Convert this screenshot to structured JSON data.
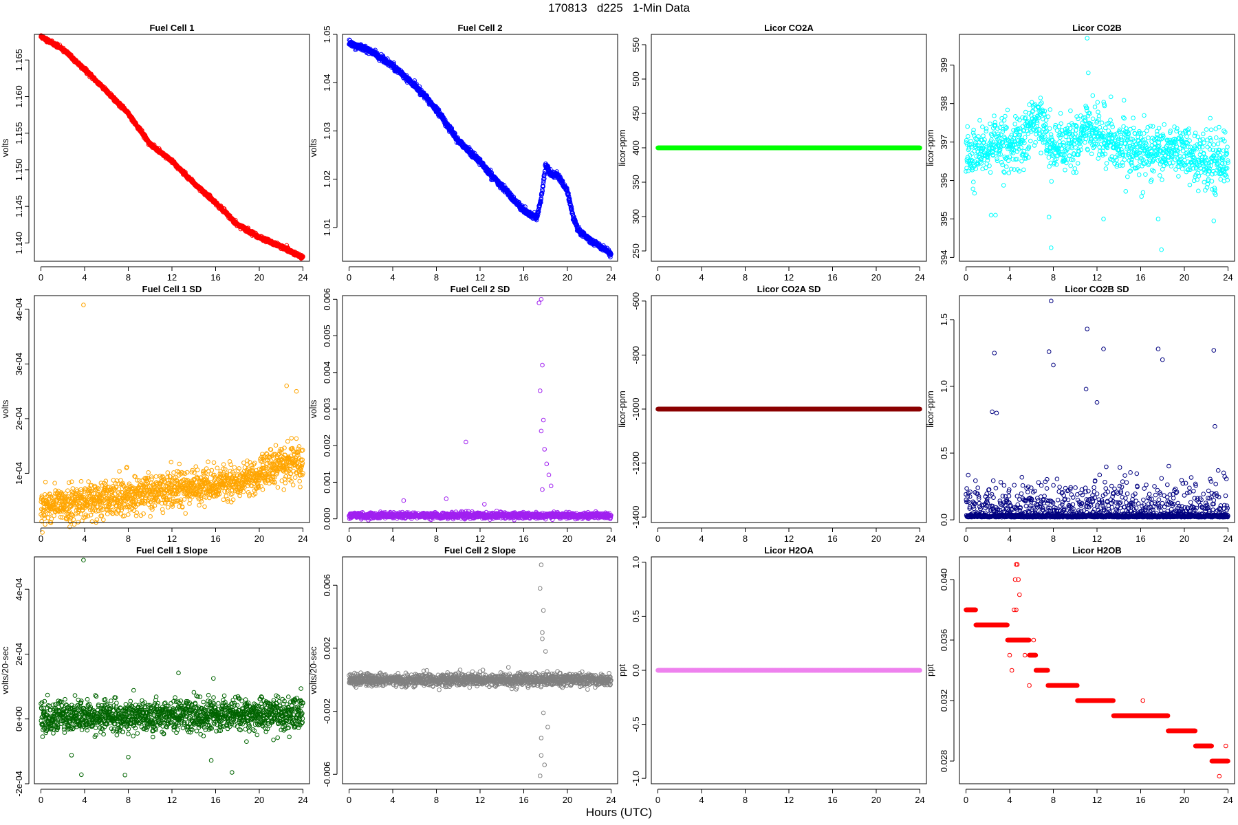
{
  "page": {
    "title": "170813   d225   1-Min Data",
    "xlabel": "Hours (UTC)"
  },
  "chart_data": [
    {
      "type": "scatter",
      "title": "Fuel Cell 1",
      "ylabel": "volts",
      "color": "#ff0000",
      "xlim": [
        0,
        24
      ],
      "ylim": [
        1.1375,
        1.1685
      ],
      "xticks": [
        0,
        4,
        8,
        12,
        16,
        20,
        24
      ],
      "yticks": [
        1.14,
        1.145,
        1.15,
        1.155,
        1.16,
        1.165
      ],
      "ytick_labels": [
        "1.140",
        "1.145",
        "1.150",
        "1.155",
        "1.160",
        "1.165"
      ],
      "trend": {
        "x": [
          0,
          2,
          4,
          6,
          8,
          10,
          12,
          14,
          16,
          18,
          20,
          22,
          24
        ],
        "y": [
          1.1682,
          1.1665,
          1.1637,
          1.1608,
          1.1577,
          1.1535,
          1.1512,
          1.1482,
          1.1455,
          1.1425,
          1.1408,
          1.1395,
          1.138
        ]
      },
      "noise": 0.00012,
      "n_points": 1440,
      "seed": 11
    },
    {
      "type": "scatter",
      "title": "Fuel Cell 2",
      "ylabel": "volts",
      "color": "#0000ff",
      "xlim": [
        0,
        24
      ],
      "ylim": [
        1.003,
        1.05
      ],
      "xticks": [
        0,
        4,
        8,
        12,
        16,
        20,
        24
      ],
      "yticks": [
        1.01,
        1.02,
        1.03,
        1.04,
        1.05
      ],
      "ytick_labels": [
        "1.01",
        "1.02",
        "1.03",
        "1.04",
        "1.05"
      ],
      "trend": {
        "x": [
          0,
          2,
          4,
          6,
          8,
          10,
          12,
          14,
          16,
          17.2,
          17.6,
          18,
          18.5,
          19,
          19.5,
          20,
          20.5,
          21,
          22,
          23,
          24
        ],
        "y": [
          1.0483,
          1.0465,
          1.0435,
          1.0395,
          1.0345,
          1.028,
          1.0235,
          1.0185,
          1.0135,
          1.012,
          1.016,
          1.023,
          1.021,
          1.021,
          1.0195,
          1.0175,
          1.0125,
          1.0095,
          1.0075,
          1.006,
          1.0045
        ]
      },
      "noise": 0.0003,
      "n_points": 1440,
      "seed": 12
    },
    {
      "type": "scatter",
      "title": "Licor CO2A",
      "ylabel": "licor-ppm",
      "color": "#00ff00",
      "xlim": [
        0,
        24
      ],
      "ylim": [
        235,
        565
      ],
      "xticks": [
        0,
        4,
        8,
        12,
        16,
        20,
        24
      ],
      "yticks": [
        250,
        300,
        350,
        400,
        450,
        500,
        550
      ],
      "ytick_labels": [
        "250",
        "300",
        "350",
        "400",
        "450",
        "500",
        "550"
      ],
      "trend": {
        "x": [
          0,
          24
        ],
        "y": [
          400,
          400
        ]
      },
      "noise": 0,
      "n_points": 1440,
      "seed": 13
    },
    {
      "type": "scatter",
      "title": "Licor CO2B",
      "ylabel": "licor-ppm",
      "color": "#00ffff",
      "xlim": [
        0,
        24
      ],
      "ylim": [
        393.9,
        399.8
      ],
      "xticks": [
        0,
        4,
        8,
        12,
        16,
        20,
        24
      ],
      "yticks": [
        394,
        395,
        396,
        397,
        398,
        399
      ],
      "ytick_labels": [
        "394",
        "395",
        "396",
        "397",
        "398",
        "399"
      ],
      "trend": {
        "x": [
          0,
          2,
          2.5,
          4,
          5,
          6,
          7,
          7.5,
          8,
          10,
          11,
          12,
          14,
          16,
          18,
          20,
          22,
          24
        ],
        "y": [
          396.8,
          396.8,
          397.0,
          396.9,
          397.0,
          397.5,
          397.6,
          396.9,
          396.9,
          397.0,
          397.5,
          397.2,
          396.9,
          396.8,
          396.8,
          396.7,
          396.5,
          396.5
        ]
      },
      "noise": 0.35,
      "n_points": 1200,
      "seed": 14,
      "extra_points": {
        "x": [
          2.3,
          2.7,
          7.6,
          7.8,
          12.6,
          17.6,
          17.9,
          22.7,
          11.1,
          11.2
        ],
        "y": [
          395.1,
          395.1,
          395.05,
          394.25,
          395.0,
          395.0,
          394.2,
          394.95,
          399.7,
          398.8
        ]
      }
    },
    {
      "type": "scatter",
      "title": "Fuel Cell 1 SD",
      "ylabel": "volts",
      "color": "#ffa500",
      "xlim": [
        0,
        24
      ],
      "ylim": [
        1e-05,
        0.000425
      ],
      "xticks": [
        0,
        4,
        8,
        12,
        16,
        20,
        24
      ],
      "yticks": [
        0.0001,
        0.0002,
        0.0003,
        0.0004
      ],
      "ytick_labels": [
        "1e-04",
        "2e-04",
        "3e-04",
        "4e-04"
      ],
      "trend": {
        "x": [
          0,
          4,
          8,
          12,
          16,
          20,
          22,
          24
        ],
        "y": [
          4.2e-05,
          5e-05,
          5.8e-05,
          7e-05,
          7.8e-05,
          9.5e-05,
          0.00012,
          0.00012
        ]
      },
      "noise": 1.6e-05,
      "n_points": 1440,
      "seed": 15,
      "extra_points": {
        "x": [
          3.9,
          22.5,
          23.4
        ],
        "y": [
          0.000408,
          0.00026,
          0.00025
        ]
      }
    },
    {
      "type": "scatter",
      "title": "Fuel Cell 2 SD",
      "ylabel": "volts",
      "color": "#a020f0",
      "xlim": [
        0,
        24
      ],
      "ylim": [
        -0.0001,
        0.0061
      ],
      "xticks": [
        0,
        4,
        8,
        12,
        16,
        20,
        24
      ],
      "yticks": [
        0,
        0.001,
        0.002,
        0.003,
        0.004,
        0.005,
        0.006
      ],
      "ytick_labels": [
        "0.000",
        "0.001",
        "0.002",
        "0.003",
        "0.004",
        "0.005",
        "0.006"
      ],
      "trend": {
        "x": [
          0,
          24
        ],
        "y": [
          9e-05,
          9e-05
        ]
      },
      "noise": 4e-05,
      "n_points": 1440,
      "seed": 16,
      "extra_points": {
        "x": [
          10.7,
          17.4,
          17.6,
          17.7,
          17.5,
          17.8,
          17.6,
          17.9,
          18.1,
          18.3,
          17.7,
          18.5,
          8.9,
          5.0,
          12.4
        ],
        "y": [
          0.0021,
          0.0059,
          0.006,
          0.0042,
          0.0035,
          0.0027,
          0.0024,
          0.0019,
          0.0015,
          0.0012,
          0.0008,
          0.0009,
          0.00055,
          0.0005,
          0.0004
        ]
      }
    },
    {
      "type": "scatter",
      "title": "Licor CO2A SD",
      "ylabel": "licor-ppm",
      "color": "#8b0000",
      "xlim": [
        0,
        24
      ],
      "ylim": [
        -1420,
        -580
      ],
      "xticks": [
        0,
        4,
        8,
        12,
        16,
        20,
        24
      ],
      "yticks": [
        -1400,
        -1200,
        -1000,
        -800,
        -600
      ],
      "ytick_labels": [
        "-1400",
        "-1200",
        "-1000",
        "-800",
        "-600"
      ],
      "trend": {
        "x": [
          0,
          24
        ],
        "y": [
          -1000,
          -1000
        ]
      },
      "noise": 0,
      "n_points": 1440,
      "seed": 17
    },
    {
      "type": "scatter",
      "title": "Licor CO2B SD",
      "ylabel": "licor-ppm",
      "color": "#000080",
      "xlim": [
        0,
        24
      ],
      "ylim": [
        -0.02,
        1.68
      ],
      "xticks": [
        0,
        4,
        8,
        12,
        16,
        20,
        24
      ],
      "yticks": [
        0,
        0.5,
        1,
        1.5
      ],
      "ytick_labels": [
        "0.0",
        "0.5",
        "1.0",
        "1.5"
      ],
      "trend": {
        "x": [
          0,
          24
        ],
        "y": [
          0.02,
          0.02
        ]
      },
      "noise": 0.12,
      "n_points": 1440,
      "seed": 18,
      "abs_noise": true,
      "extra_points": {
        "x": [
          7.8,
          11.1,
          12.6,
          2.6,
          17.6,
          18.0,
          22.7,
          7.6,
          8.0,
          2.4,
          2.8,
          11.0,
          22.8,
          12.0
        ],
        "y": [
          1.64,
          1.43,
          1.28,
          1.25,
          1.28,
          1.2,
          1.27,
          1.26,
          1.16,
          0.81,
          0.8,
          0.98,
          0.7,
          0.88
        ]
      }
    },
    {
      "type": "scatter",
      "title": "Fuel Cell 1 Slope",
      "ylabel": "volts/20-sec",
      "color": "#006400",
      "xlim": [
        0,
        24
      ],
      "ylim": [
        -0.0002,
        0.0005
      ],
      "xticks": [
        0,
        4,
        8,
        12,
        16,
        20,
        24
      ],
      "yticks": [
        -0.0002,
        0,
        0.0002,
        0.0004
      ],
      "ytick_labels": [
        "-2e-04",
        "0e+00",
        "2e-04",
        "4e-04"
      ],
      "trend": {
        "x": [
          0,
          24
        ],
        "y": [
          5e-06,
          1.5e-05
        ]
      },
      "noise": 2.5e-05,
      "n_points": 1440,
      "seed": 19,
      "extra_points": {
        "x": [
          3.9,
          12.6,
          15.8,
          17.5,
          3.7,
          7.7,
          2.8,
          8.0,
          15.6
        ],
        "y": [
          0.00049,
          0.000142,
          0.000125,
          -0.000165,
          -0.000172,
          -0.000173,
          -0.000112,
          -0.000118,
          -0.000128
        ]
      }
    },
    {
      "type": "scatter",
      "title": "Fuel Cell 2 Slope",
      "ylabel": "volts/20-sec",
      "color": "#808080",
      "xlim": [
        0,
        24
      ],
      "ylim": [
        -0.0066,
        0.0078
      ],
      "xticks": [
        0,
        4,
        8,
        12,
        16,
        20,
        24
      ],
      "yticks": [
        -0.006,
        -0.002,
        0.002,
        0.006
      ],
      "ytick_labels": [
        "-0.006",
        "-0.002",
        "0.002",
        "0.006"
      ],
      "trend": {
        "x": [
          0,
          24
        ],
        "y": [
          0,
          0
        ]
      },
      "noise": 0.0002,
      "n_points": 1440,
      "seed": 20,
      "extra_points": {
        "x": [
          17.6,
          17.5,
          17.8,
          17.7,
          18.0,
          17.6,
          17.5,
          17.9,
          18.2,
          17.6,
          17.7,
          17.8
        ],
        "y": [
          0.0073,
          0.0058,
          0.0044,
          0.003,
          0.0018,
          -0.0048,
          -0.0061,
          -0.0054,
          -0.003,
          -0.0037,
          0.0026,
          -0.0021
        ]
      }
    },
    {
      "type": "scatter",
      "title": "Licor H2OA",
      "ylabel": "ppt",
      "color": "#ee82ee",
      "xlim": [
        0,
        24
      ],
      "ylim": [
        -1.05,
        1.05
      ],
      "xticks": [
        0,
        4,
        8,
        12,
        16,
        20,
        24
      ],
      "yticks": [
        -1,
        -0.5,
        0,
        0.5,
        1
      ],
      "ytick_labels": [
        "-1.0",
        "-0.5",
        "0.0",
        "0.5",
        "1.0"
      ],
      "trend": {
        "x": [
          0,
          24
        ],
        "y": [
          0,
          0
        ]
      },
      "noise": 0,
      "n_points": 1440,
      "seed": 21
    },
    {
      "type": "scatter",
      "title": "Licor H2OB",
      "ylabel": "ppt",
      "color": "#ff0000",
      "xlim": [
        0,
        24
      ],
      "ylim": [
        0.0265,
        0.0415
      ],
      "xticks": [
        0,
        4,
        8,
        12,
        16,
        20,
        24
      ],
      "yticks": [
        0.028,
        0.032,
        0.036,
        0.04
      ],
      "ytick_labels": [
        "0.028",
        "0.032",
        "0.036",
        "0.040"
      ],
      "steps": [
        [
          0,
          0.038
        ],
        [
          0.9,
          0.037
        ],
        [
          3.8,
          0.036
        ],
        [
          5.8,
          0.035
        ],
        [
          6.4,
          0.034
        ],
        [
          7.5,
          0.033
        ],
        [
          10.2,
          0.032
        ],
        [
          13.5,
          0.031
        ],
        [
          18.5,
          0.03
        ],
        [
          21.0,
          0.029
        ],
        [
          22.5,
          0.028
        ]
      ],
      "n_points": 1440,
      "seed": 22,
      "extra_points": {
        "x": [
          4.6,
          4.7,
          4.8,
          4.5,
          4.9,
          4.4,
          4.6,
          5.2,
          5.4,
          4.0,
          4.2,
          6.2,
          16.2,
          23.2,
          23.8,
          5.8
        ],
        "y": [
          0.041,
          0.041,
          0.04,
          0.04,
          0.039,
          0.038,
          0.038,
          0.036,
          0.035,
          0.035,
          0.034,
          0.036,
          0.032,
          0.027,
          0.029,
          0.033
        ]
      }
    }
  ]
}
